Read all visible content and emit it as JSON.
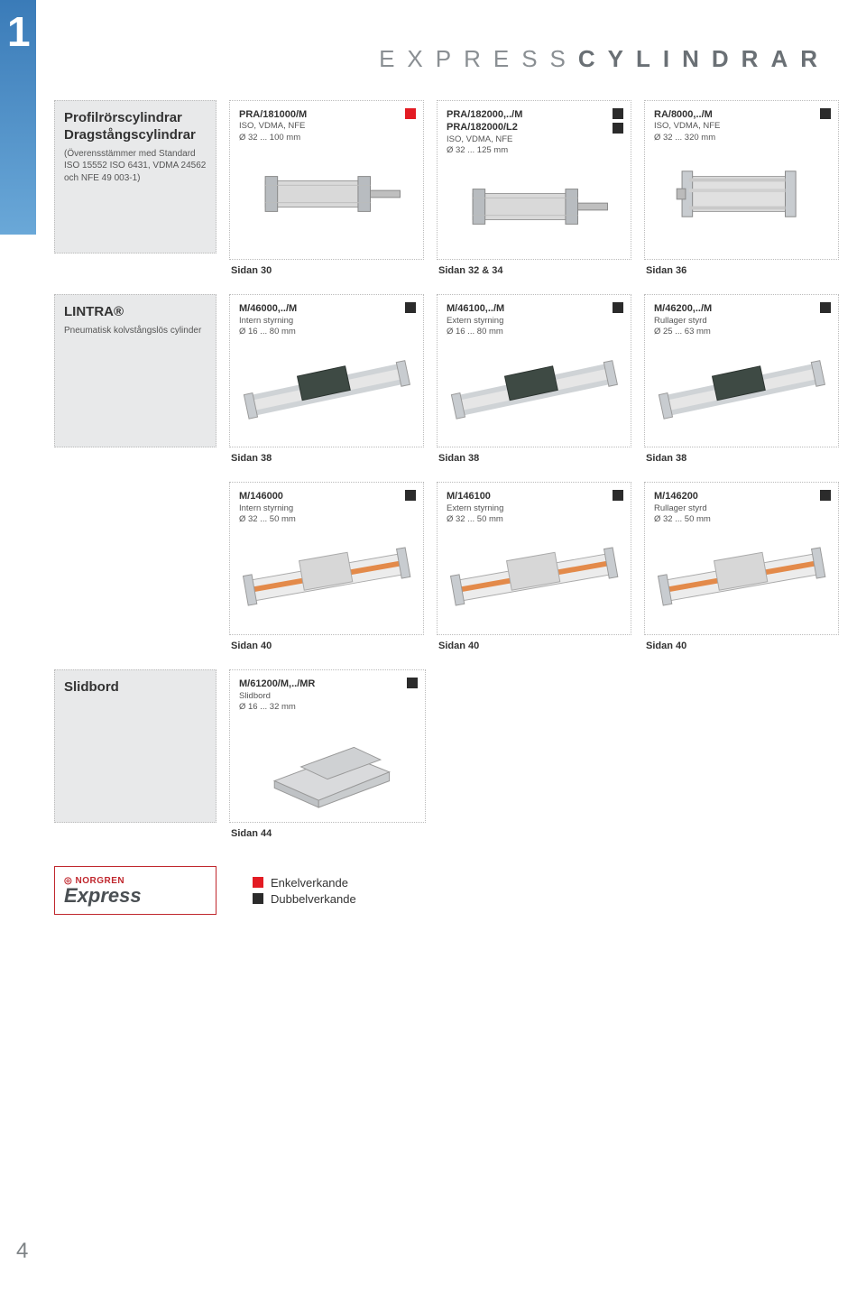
{
  "chapter": "1",
  "pageTitleThin": "EXPRESS",
  "pageTitleBold": "CYLINDRAR",
  "rows": [
    {
      "category": {
        "title": "Profilrörscylindrar Dragstångs­cylindrar",
        "sub": "(Överensstämmer med Standard ISO 15552 ISO 6431, VDMA 24562 och NFE 49 003-1)"
      },
      "cards": [
        {
          "titles": [
            "PRA/181000/M"
          ],
          "specs": [
            "ISO, VDMA, NFE",
            "Ø 32 ... 100 mm"
          ],
          "markers": [
            "red"
          ],
          "ref": "Sidan 30",
          "img": "cyl1"
        },
        {
          "titles": [
            "PRA/182000,../M",
            "PRA/182000/L2"
          ],
          "specs": [
            "ISO, VDMA, NFE",
            "Ø 32 ... 125 mm"
          ],
          "markers": [
            "black",
            "black"
          ],
          "ref": "Sidan 32 & 34",
          "img": "cyl1"
        },
        {
          "titles": [
            "RA/8000,../M"
          ],
          "specs": [
            "ISO, VDMA, NFE",
            "Ø 32 ... 320 mm"
          ],
          "markers": [
            "black"
          ],
          "ref": "Sidan 36",
          "img": "cyl2"
        }
      ]
    },
    {
      "category": {
        "title": "LINTRA®",
        "sub": "Pneumatisk kolvstångslös cylinder"
      },
      "cards": [
        {
          "titles": [
            "M/46000,../M"
          ],
          "specs": [
            "Intern styrning",
            "Ø 16 ... 80 mm"
          ],
          "markers": [
            "black"
          ],
          "ref": "Sidan 38",
          "img": "rail1"
        },
        {
          "titles": [
            "M/46100,../M"
          ],
          "specs": [
            "Extern styrning",
            "Ø 16 ... 80 mm"
          ],
          "markers": [
            "black"
          ],
          "ref": "Sidan 38",
          "img": "rail1"
        },
        {
          "titles": [
            "M/46200,../M"
          ],
          "specs": [
            "Rullager styrd",
            "Ø 25 ... 63 mm"
          ],
          "markers": [
            "black"
          ],
          "ref": "Sidan 38",
          "img": "rail1"
        }
      ]
    },
    {
      "category": null,
      "cards": [
        {
          "titles": [
            "M/146000"
          ],
          "specs": [
            "Intern styrning",
            "Ø 32 ... 50 mm"
          ],
          "markers": [
            "black"
          ],
          "ref": "Sidan 40",
          "img": "rail2"
        },
        {
          "titles": [
            "M/146100"
          ],
          "specs": [
            "Extern styrning",
            "Ø 32 ... 50 mm"
          ],
          "markers": [
            "black"
          ],
          "ref": "Sidan 40",
          "img": "rail2"
        },
        {
          "titles": [
            "M/146200"
          ],
          "specs": [
            "Rullager styrd",
            "Ø 32 ... 50 mm"
          ],
          "markers": [
            "black"
          ],
          "ref": "Sidan 40",
          "img": "rail2"
        }
      ]
    },
    {
      "category": {
        "title": "Slidbord",
        "sub": ""
      },
      "cards": [
        {
          "titles": [
            "M/61200/M,../MR"
          ],
          "specs": [
            "Slidbord",
            "Ø 16 ... 32 mm"
          ],
          "markers": [
            "black"
          ],
          "ref": "Sidan 44",
          "img": "block"
        }
      ]
    }
  ],
  "logo": {
    "brand": "NORGREN",
    "express": "Express"
  },
  "legend": {
    "single": "Enkelverkande",
    "double": "Dubbelverkande"
  },
  "pageNumber": "4",
  "colors": {
    "red": "#e31b23",
    "black": "#2b2b2b",
    "greyBox": "#e8e9ea",
    "brandRed": "#c0272d"
  }
}
